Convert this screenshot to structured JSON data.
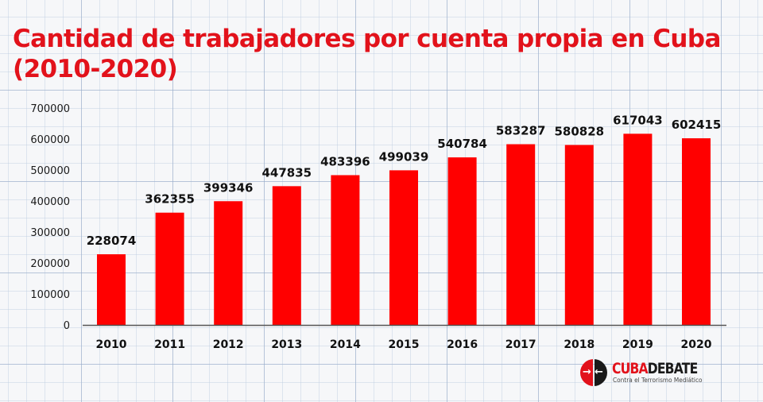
{
  "chart_data": {
    "type": "bar",
    "title": "Cantidad de trabajadores por cuenta propia en Cuba (2010-2020)",
    "title_lines": [
      "Cantidad de trabajadores por cuenta propia en Cuba",
      "(2010-2020)"
    ],
    "xlabel": "",
    "ylabel": "",
    "categories": [
      "2010",
      "2011",
      "2012",
      "2013",
      "2014",
      "2015",
      "2016",
      "2017",
      "2018",
      "2019",
      "2020"
    ],
    "values": [
      228074,
      362355,
      399346,
      447835,
      483396,
      499039,
      540784,
      583287,
      580828,
      617043,
      602415
    ],
    "value_labels": [
      "228074",
      "362355",
      "399346",
      "447835",
      "483396",
      "499039",
      "540784",
      "583287",
      "580828",
      "617043",
      "602415"
    ],
    "ylim": [
      0,
      700000
    ],
    "yticks": [
      0,
      100000,
      200000,
      300000,
      400000,
      500000,
      600000,
      700000
    ],
    "ytick_labels": [
      "0",
      "100000",
      "200000",
      "300000",
      "400000",
      "500000",
      "600000",
      "700000"
    ],
    "grid": false,
    "legend": "none",
    "bar_color": "#ff0000"
  },
  "logo": {
    "name_part1": "CUBA",
    "name_part2": "DEBATE",
    "tagline": "Contra el Terrorismo Mediático",
    "accent_color": "#e2121b"
  }
}
